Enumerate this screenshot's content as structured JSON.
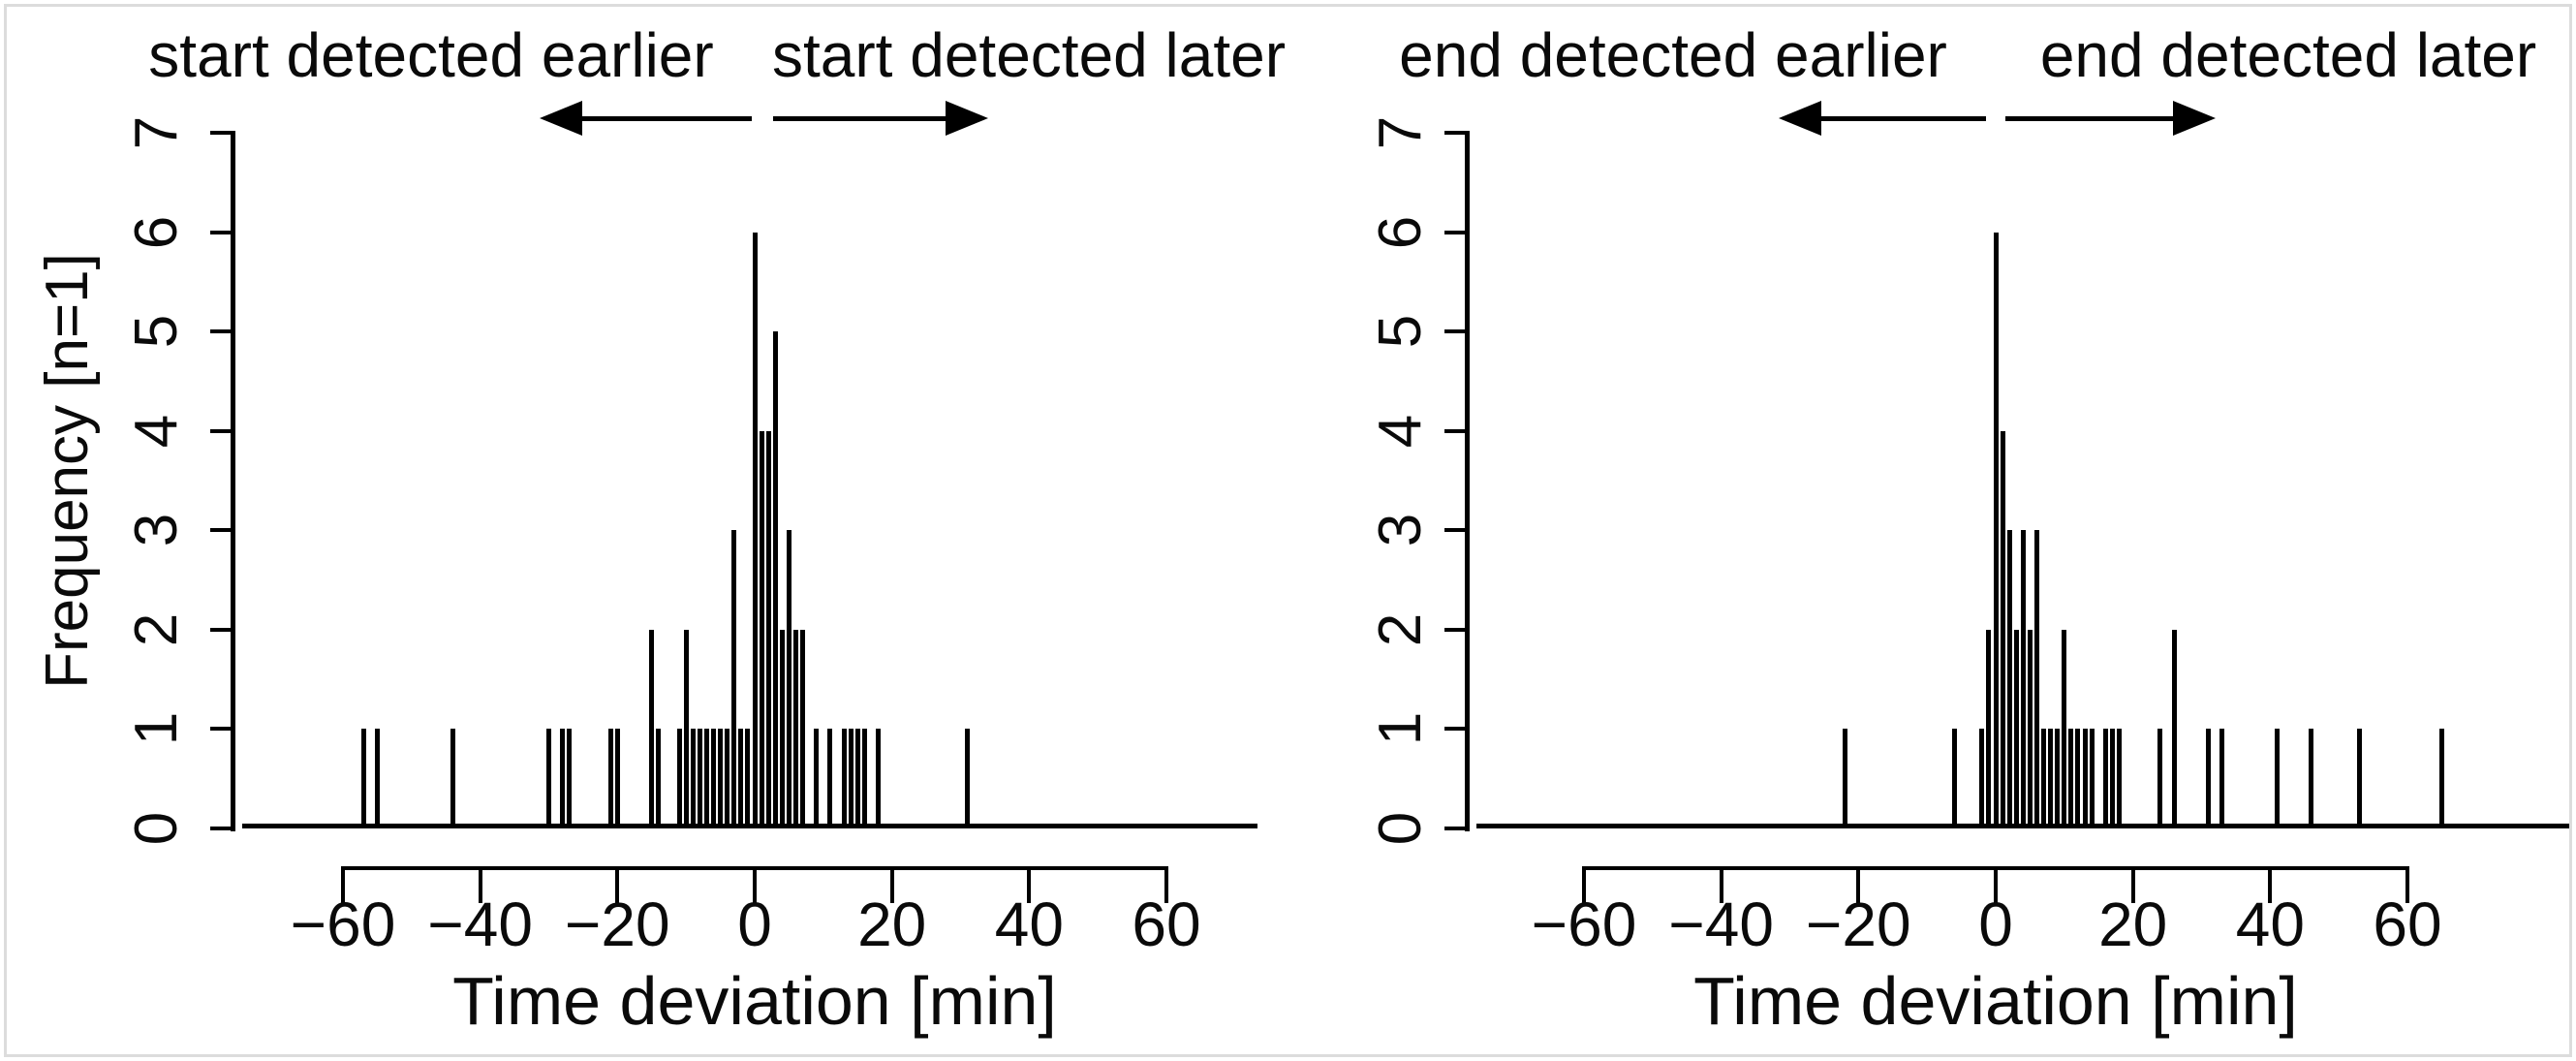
{
  "figure": {
    "background": "#ffffff",
    "ink_color": "#000000",
    "border_color": "#dcdcdc",
    "panels": [
      "start deviation histogram",
      "end deviation histogram"
    ]
  },
  "chart_data": [
    {
      "type": "bar",
      "subtype": "needle-histogram",
      "panel": "start",
      "annotation_left": "start detected earlier",
      "annotation_right": "start detected later",
      "xlabel": "Time deviation [min]",
      "ylabel": "Frequency [n=1]",
      "xticks": [
        -60,
        -40,
        -20,
        0,
        20,
        40,
        60
      ],
      "yticks": [
        0,
        1,
        2,
        3,
        4,
        5,
        6,
        7
      ],
      "xlim": [
        -74,
        73
      ],
      "ylim": [
        0,
        7
      ],
      "grid": false,
      "points": [
        [
          -57,
          1
        ],
        [
          -55,
          1
        ],
        [
          -44,
          1
        ],
        [
          -30,
          1
        ],
        [
          -28,
          1
        ],
        [
          -27,
          1
        ],
        [
          -21,
          1
        ],
        [
          -20,
          1
        ],
        [
          -15,
          2
        ],
        [
          -14,
          1
        ],
        [
          -11,
          1
        ],
        [
          -10,
          2
        ],
        [
          -9,
          1
        ],
        [
          -8,
          1
        ],
        [
          -7,
          1
        ],
        [
          -6,
          1
        ],
        [
          -5,
          1
        ],
        [
          -4,
          1
        ],
        [
          -3,
          3
        ],
        [
          -2,
          1
        ],
        [
          -1,
          1
        ],
        [
          0,
          6
        ],
        [
          1,
          4
        ],
        [
          2,
          4
        ],
        [
          3,
          5
        ],
        [
          4,
          2
        ],
        [
          5,
          3
        ],
        [
          6,
          2
        ],
        [
          7,
          2
        ],
        [
          9,
          1
        ],
        [
          11,
          1
        ],
        [
          13,
          1
        ],
        [
          14,
          1
        ],
        [
          15,
          1
        ],
        [
          16,
          1
        ],
        [
          18,
          1
        ],
        [
          31,
          1
        ]
      ]
    },
    {
      "type": "bar",
      "subtype": "needle-histogram",
      "panel": "end",
      "annotation_left": "end detected earlier",
      "annotation_right": "end detected later",
      "xlabel": "Time deviation [min]",
      "xticks": [
        -60,
        -40,
        -20,
        0,
        20,
        40,
        60
      ],
      "yticks": [
        0,
        1,
        2,
        3,
        4,
        5,
        6,
        7
      ],
      "xlim": [
        -75,
        83
      ],
      "ylim": [
        0,
        7
      ],
      "grid": false,
      "points": [
        [
          -22,
          1
        ],
        [
          -6,
          1
        ],
        [
          -2,
          1
        ],
        [
          -1,
          2
        ],
        [
          0,
          6
        ],
        [
          1,
          4
        ],
        [
          2,
          3
        ],
        [
          3,
          2
        ],
        [
          4,
          3
        ],
        [
          5,
          2
        ],
        [
          6,
          3
        ],
        [
          7,
          1
        ],
        [
          8,
          1
        ],
        [
          9,
          1
        ],
        [
          10,
          2
        ],
        [
          11,
          1
        ],
        [
          12,
          1
        ],
        [
          13,
          1
        ],
        [
          14,
          1
        ],
        [
          16,
          1
        ],
        [
          17,
          1
        ],
        [
          18,
          1
        ],
        [
          24,
          1
        ],
        [
          26,
          2
        ],
        [
          31,
          1
        ],
        [
          33,
          1
        ],
        [
          41,
          1
        ],
        [
          46,
          1
        ],
        [
          53,
          1
        ],
        [
          65,
          1
        ]
      ]
    }
  ]
}
